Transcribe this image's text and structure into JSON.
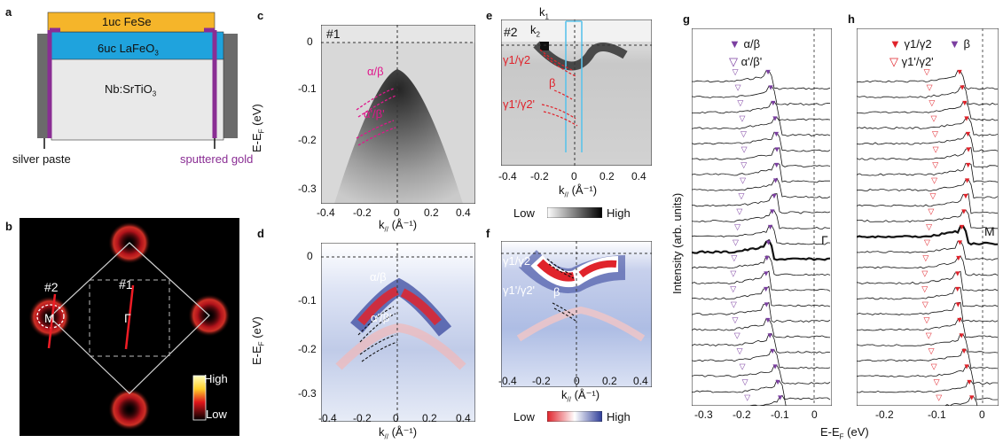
{
  "panels": {
    "a": {
      "label": "a",
      "layer_top": "1uc FeSe",
      "layer_mid": "6uc LaFeO",
      "layer_mid_sub": "3",
      "layer_bot": "Nb:SrTiO",
      "layer_bot_sub": "3",
      "silver": "silver paste",
      "gold": "sputtered gold"
    },
    "b": {
      "label": "b",
      "cut2": "#2",
      "cut1": "#1",
      "point_M": "M",
      "point_G": "Γ",
      "cbar_high": "High",
      "cbar_low": "Low"
    },
    "c": {
      "label": "c",
      "tag": "#1",
      "band1": "α/β",
      "band2": "α'/β'",
      "ylabel": "E-E",
      "ylabel_sub": "F",
      "ylabel_end": " (eV)",
      "xlabel": "k",
      "xlabel_sub": "//",
      "xlabel_end": " (Å⁻¹)",
      "xticks": [
        "-0.4",
        "-0.2",
        "0",
        "0.2",
        "0.4"
      ],
      "yticks": [
        "0",
        "-0.1",
        "-0.2",
        "-0.3"
      ]
    },
    "d": {
      "label": "d",
      "band1": "α/β",
      "band2": "α'/β'",
      "ylabel": "E-E",
      "ylabel_sub": "F",
      "ylabel_end": " (eV)",
      "xlabel": "k",
      "xlabel_sub": "//",
      "xlabel_end": " (Å⁻¹)",
      "xticks": [
        "-0.4",
        "-0.2",
        "0",
        "0.2",
        "0.4"
      ],
      "yticks": [
        "0",
        "-0.1",
        "-0.2",
        "-0.3"
      ]
    },
    "e": {
      "label": "e",
      "tag": "#2",
      "k1": "k",
      "k1_sub": "1",
      "k2": "k",
      "k2_sub": "2",
      "band1": "γ1/γ2",
      "band2": "β",
      "band3": "γ1'/γ2'",
      "xlabel": "k",
      "xlabel_sub": "//",
      "xlabel_end": " (Å⁻¹)",
      "xticks": [
        "-0.4",
        "-0.2",
        "0",
        "0.2",
        "0.4"
      ],
      "cbar_low": "Low",
      "cbar_high": "High"
    },
    "f": {
      "label": "f",
      "band1": "γ1/γ2",
      "band2": "γ1'/γ2'",
      "band3": "β",
      "xlabel": "k",
      "xlabel_sub": "//",
      "xlabel_end": " (Å⁻¹)",
      "xticks": [
        "-0.4",
        "-0.2",
        "0",
        "0.2",
        "0.4"
      ],
      "cbar_low": "Low",
      "cbar_high": "High"
    },
    "g": {
      "label": "g",
      "legend1": "α/β",
      "legend2": "α'/β'",
      "point": "Γ",
      "xticks": [
        "-0.3",
        "-0.2",
        "-0.1",
        "0"
      ]
    },
    "h": {
      "label": "h",
      "legend1": "γ1/γ2",
      "legend2": "β",
      "legend3": "γ1'/γ2'",
      "point": "M",
      "xticks": [
        "-0.2",
        "-0.1",
        "0"
      ]
    },
    "shared": {
      "ylabel_gh": "Intensity (arb. units)",
      "xlabel_gh": "E-E",
      "xlabel_gh_sub": "F",
      "xlabel_gh_end": " (eV)"
    }
  },
  "colors": {
    "fese": "#f5b52a",
    "lafeo": "#1fa3dd",
    "srtio": "#e9e9e9",
    "silver": "#6b6b6b",
    "gold": "#8a2e94",
    "magenta": "#e0178c",
    "purple": "#7b3fa0",
    "red": "#e0232b",
    "cyan": "#5cc3ea"
  }
}
